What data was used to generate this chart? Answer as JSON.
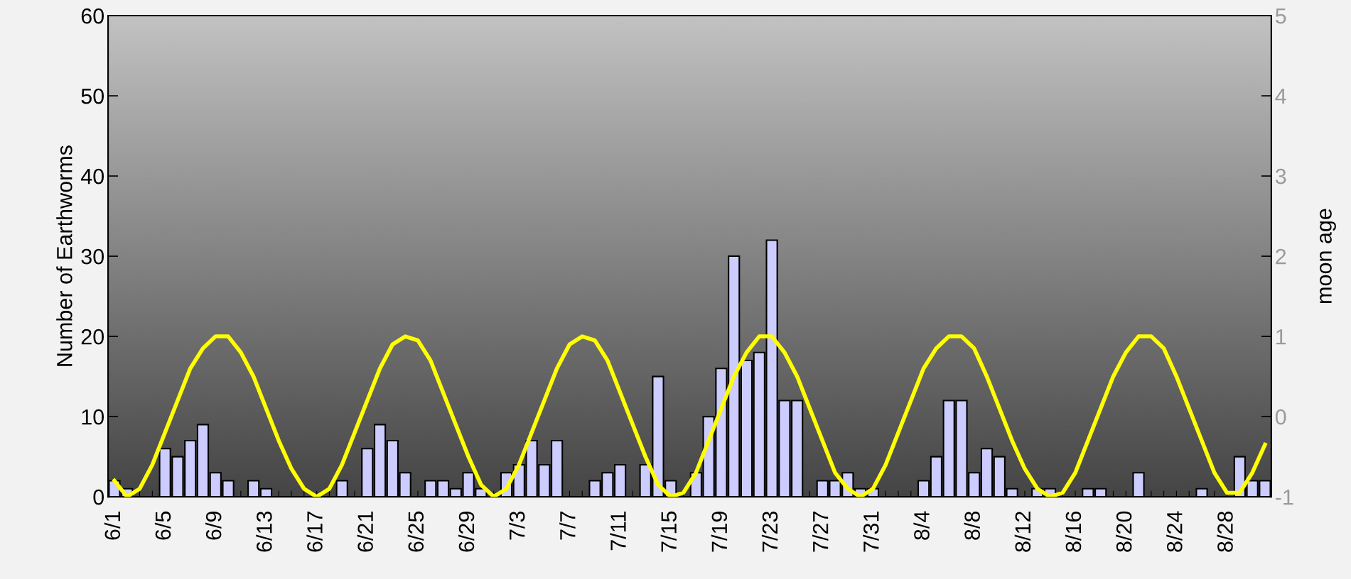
{
  "chart_data": {
    "type": "bar",
    "ylabel": "Number of Earthworms",
    "y2label": "moon age",
    "categories": [
      "6/1",
      null,
      null,
      null,
      "6/5",
      null,
      null,
      null,
      "6/9",
      null,
      null,
      null,
      "6/13",
      null,
      null,
      null,
      "6/17",
      null,
      null,
      null,
      "6/21",
      null,
      null,
      null,
      "6/25",
      null,
      null,
      null,
      "6/29",
      null,
      null,
      null,
      "7/3",
      null,
      null,
      null,
      "7/7",
      null,
      null,
      null,
      "7/11",
      null,
      null,
      null,
      "7/15",
      null,
      null,
      null,
      "7/19",
      null,
      null,
      null,
      "7/23",
      null,
      null,
      null,
      "7/27",
      null,
      null,
      null,
      "7/31",
      null,
      null,
      null,
      "8/4",
      null,
      null,
      null,
      "8/8",
      null,
      null,
      null,
      "8/12",
      null,
      null,
      null,
      "8/16",
      null,
      null,
      null,
      "8/20",
      null,
      null,
      null,
      "8/24",
      null,
      null,
      null,
      "8/28",
      null,
      null,
      null
    ],
    "series": [
      {
        "color": "#ccccff",
        "values": [
          2,
          1,
          0,
          0,
          6,
          5,
          7,
          9,
          3,
          2,
          0,
          2,
          1,
          0,
          0,
          0,
          0,
          0,
          2,
          0,
          6,
          9,
          7,
          3,
          0,
          2,
          2,
          1,
          3,
          1,
          0,
          3,
          4,
          7,
          4,
          7,
          0,
          0,
          2,
          3,
          4,
          0,
          4,
          15,
          2,
          0,
          3,
          10,
          16,
          30,
          17,
          18,
          32,
          12,
          12,
          0,
          2,
          2,
          3,
          1,
          1,
          0,
          0,
          0,
          2,
          5,
          12,
          12,
          3,
          6,
          5,
          1,
          0,
          1,
          1,
          0,
          0,
          1,
          1,
          0,
          0,
          3,
          0,
          0,
          0,
          0,
          1,
          0,
          0,
          5,
          2,
          2
        ]
      },
      {
        "type": "line",
        "axis": "y2",
        "color": "#ffff00",
        "values": [
          -0.8,
          -1,
          -0.9,
          -0.6,
          -0.2,
          0.2,
          0.6,
          0.85,
          1,
          1,
          0.8,
          0.5,
          0.1,
          -0.3,
          -0.65,
          -0.9,
          -1,
          -0.9,
          -0.6,
          -0.2,
          0.2,
          0.6,
          0.9,
          1,
          0.95,
          0.7,
          0.3,
          -0.1,
          -0.5,
          -0.85,
          -1,
          -0.9,
          -0.6,
          -0.2,
          0.2,
          0.6,
          0.9,
          1,
          0.95,
          0.7,
          0.3,
          -0.1,
          -0.5,
          -0.85,
          -1,
          -0.95,
          -0.7,
          -0.3,
          0.1,
          0.5,
          0.8,
          1,
          1,
          0.8,
          0.5,
          0.1,
          -0.3,
          -0.7,
          -0.9,
          -1,
          -0.9,
          -0.6,
          -0.2,
          0.2,
          0.6,
          0.85,
          1,
          1,
          0.85,
          0.5,
          0.1,
          -0.3,
          -0.65,
          -0.9,
          -1,
          -0.95,
          -0.7,
          -0.3,
          0.1,
          0.5,
          0.8,
          1,
          1,
          0.85,
          0.5,
          0.1,
          -0.3,
          -0.7,
          -0.95,
          -0.95,
          -0.7,
          -0.35
        ]
      }
    ],
    "ylim": [
      0,
      60
    ],
    "yticks": [
      0,
      10,
      20,
      30,
      40,
      50,
      60
    ],
    "y2lim": [
      -1,
      5
    ],
    "y2ticks": [
      -1,
      0,
      1,
      2,
      3,
      4,
      5
    ],
    "grid": false
  }
}
